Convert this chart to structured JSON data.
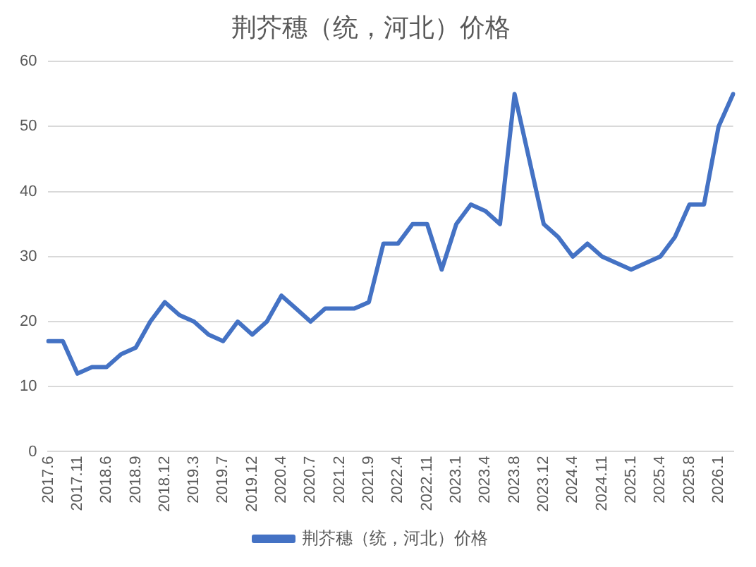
{
  "chart_data": {
    "type": "line",
    "title": "荆芥穗（统，河北）价格",
    "categories": [
      "2017.6",
      null,
      "2017.11",
      null,
      "2018.6",
      null,
      "2018.9",
      null,
      "2018.12",
      null,
      "2019.3",
      null,
      "2019.7",
      null,
      "2019.12",
      null,
      "2020.4",
      null,
      "2020.7",
      null,
      "2021.2",
      null,
      "2021.9",
      null,
      "2022.4",
      null,
      "2022.11",
      null,
      "2023.1",
      null,
      "2023.4",
      null,
      "2023.8",
      null,
      "2023.12",
      null,
      "2024.4",
      null,
      "2024.11",
      null,
      "2025.1",
      null,
      "2025.4",
      null,
      "2025.8",
      null,
      "2026.1",
      null
    ],
    "series": [
      {
        "name": "荆芥穗（统，河北）价格",
        "color": "#4472c4",
        "values": [
          17,
          17,
          12,
          13,
          13,
          15,
          16,
          20,
          23,
          21,
          20,
          18,
          17,
          20,
          18,
          20,
          24,
          22,
          20,
          22,
          22,
          22,
          23,
          32,
          32,
          35,
          35,
          28,
          35,
          38,
          37,
          35,
          55,
          45,
          35,
          33,
          30,
          32,
          30,
          29,
          28,
          29,
          30,
          33,
          38,
          38,
          50,
          55
        ]
      }
    ],
    "ylim": [
      0,
      60
    ],
    "yticks": [
      0,
      10,
      20,
      30,
      40,
      50,
      60
    ],
    "grid": "y",
    "legend": "bottom",
    "marker": "none",
    "line_style": "solid"
  }
}
